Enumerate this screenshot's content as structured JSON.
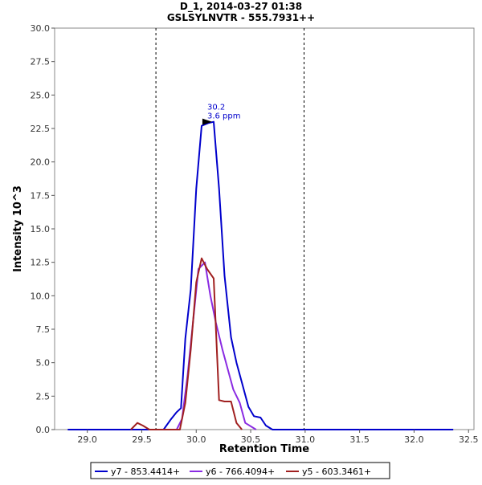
{
  "chart_data": {
    "type": "line",
    "title": "D_1, 2014-03-27 01:38",
    "subtitle": "GSLSYLNVTR - 555.7931++",
    "xlabel": "Retention Time",
    "ylabel": "Intensity 10^3",
    "xlim": [
      28.7,
      32.55
    ],
    "ylim": [
      0,
      30
    ],
    "x_ticks": [
      "29.0",
      "29.5",
      "30.0",
      "30.5",
      "31.0",
      "31.5",
      "32.0",
      "32.5"
    ],
    "y_ticks": [
      "0.0",
      "2.5",
      "5.0",
      "7.5",
      "10.0",
      "12.5",
      "15.0",
      "17.5",
      "20.0",
      "22.5",
      "25.0",
      "27.5",
      "30.0"
    ],
    "boundary_lines": [
      29.63,
      30.99
    ],
    "annotation": {
      "label_rt": "30.2",
      "label_ppm": "3.6 ppm",
      "x": 30.16,
      "y": 23.0
    },
    "series": [
      {
        "name": "y7 - 853.4414+",
        "color": "#0000cc",
        "points": [
          [
            28.82,
            0
          ],
          [
            29.7,
            0
          ],
          [
            29.77,
            0.8
          ],
          [
            29.82,
            1.3
          ],
          [
            29.86,
            1.6
          ],
          [
            29.9,
            6.8
          ],
          [
            29.95,
            10.5
          ],
          [
            30.0,
            18.0
          ],
          [
            30.05,
            22.7
          ],
          [
            30.11,
            22.9
          ],
          [
            30.16,
            23.0
          ],
          [
            30.21,
            18.0
          ],
          [
            30.26,
            11.5
          ],
          [
            30.32,
            6.9
          ],
          [
            30.37,
            5.0
          ],
          [
            30.42,
            3.5
          ],
          [
            30.48,
            1.7
          ],
          [
            30.53,
            1.0
          ],
          [
            30.59,
            0.9
          ],
          [
            30.64,
            0.3
          ],
          [
            30.7,
            0
          ],
          [
            32.36,
            0
          ]
        ]
      },
      {
        "name": "y6 - 766.4094+",
        "color": "#8a2be2",
        "points": [
          [
            29.82,
            0
          ],
          [
            29.87,
            0.8
          ],
          [
            29.92,
            4.0
          ],
          [
            29.97,
            8.0
          ],
          [
            30.02,
            12.0
          ],
          [
            30.08,
            12.5
          ],
          [
            30.13,
            10.0
          ],
          [
            30.18,
            8.0
          ],
          [
            30.24,
            6.0
          ],
          [
            30.29,
            4.5
          ],
          [
            30.34,
            3.0
          ],
          [
            30.4,
            2.0
          ],
          [
            30.45,
            0.5
          ],
          [
            30.55,
            0
          ]
        ]
      },
      {
        "name": "y5 - 603.3461+",
        "color": "#a02020",
        "points": [
          [
            29.4,
            0
          ],
          [
            29.46,
            0.5
          ],
          [
            29.51,
            0.3
          ],
          [
            29.57,
            0
          ],
          [
            29.85,
            0
          ],
          [
            29.9,
            2.0
          ],
          [
            29.95,
            6.0
          ],
          [
            30.0,
            11.0
          ],
          [
            30.05,
            12.8
          ],
          [
            30.1,
            12.0
          ],
          [
            30.16,
            11.3
          ],
          [
            30.21,
            2.2
          ],
          [
            30.26,
            2.1
          ],
          [
            30.32,
            2.1
          ],
          [
            30.37,
            0.5
          ],
          [
            30.42,
            0
          ]
        ]
      }
    ]
  }
}
